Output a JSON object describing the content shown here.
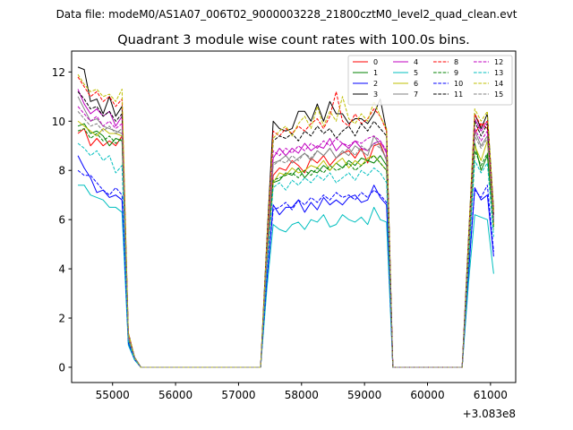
{
  "chart_data": {
    "type": "line",
    "suptitle": "Data file: modeM0/AS1A07_006T02_9000003228_21800cztM0_level2_quad_clean.evt",
    "title": "Quadrant 3 module wise count rates with 100.0s bins.",
    "xlabel": "",
    "ylabel": "",
    "x_offset_label": "+3.083e8",
    "xlim": [
      54350,
      61400
    ],
    "ylim": [
      -0.62,
      12.85
    ],
    "x_ticks": [
      55000,
      56000,
      57000,
      58000,
      59000,
      60000,
      61000
    ],
    "x_tick_labels": [
      "55000",
      "56000",
      "57000",
      "58000",
      "59000",
      "60000",
      "61000"
    ],
    "y_ticks": [
      0,
      2,
      4,
      6,
      8,
      10,
      12
    ],
    "y_tick_labels": [
      "0",
      "2",
      "4",
      "6",
      "8",
      "10",
      "12"
    ],
    "grid": false,
    "legend_position": "top-right",
    "x": [
      54450,
      54550,
      54650,
      54750,
      54850,
      54950,
      55050,
      55150,
      55250,
      55350,
      55450,
      55550,
      55650,
      55750,
      55850,
      55950,
      56050,
      56150,
      56250,
      56350,
      56450,
      56550,
      56650,
      56750,
      56850,
      56950,
      57050,
      57150,
      57250,
      57350,
      57450,
      57550,
      57650,
      57750,
      57850,
      57950,
      58050,
      58150,
      58250,
      58350,
      58450,
      58550,
      58650,
      58750,
      58850,
      58950,
      59050,
      59150,
      59250,
      59350,
      59450,
      59550,
      59650,
      59750,
      59850,
      59950,
      60050,
      60150,
      60250,
      60350,
      60450,
      60550,
      60650,
      60750,
      60850,
      60950,
      61050
    ],
    "series": [
      {
        "name": "0",
        "color": "#ff0000",
        "dash": "solid",
        "values": [
          9.5,
          9.7,
          9.0,
          9.3,
          9.0,
          9.2,
          9.0,
          9.4,
          1.2,
          0.4,
          0,
          0,
          0,
          0,
          0,
          0,
          0,
          0,
          0,
          0,
          0,
          0,
          0,
          0,
          0,
          0,
          0,
          0,
          0,
          0,
          4.5,
          7.8,
          8.1,
          8.0,
          8.4,
          8.2,
          7.9,
          8.5,
          8.3,
          8.6,
          8.2,
          8.5,
          8.7,
          8.8,
          8.5,
          8.9,
          8.3,
          9.0,
          9.1,
          8.4,
          0,
          0,
          0,
          0,
          0,
          0,
          0,
          0,
          0,
          0,
          0,
          0,
          4.5,
          9.5,
          9.9,
          9.7,
          5.8
        ]
      },
      {
        "name": "1",
        "color": "#008000",
        "dash": "solid",
        "values": [
          9.8,
          9.9,
          9.5,
          9.6,
          9.4,
          9.0,
          9.3,
          9.2,
          1.1,
          0.4,
          0,
          0,
          0,
          0,
          0,
          0,
          0,
          0,
          0,
          0,
          0,
          0,
          0,
          0,
          0,
          0,
          0,
          0,
          0,
          0,
          4.4,
          7.5,
          7.6,
          7.9,
          7.8,
          8.1,
          7.7,
          8.0,
          7.9,
          8.2,
          8.0,
          8.3,
          8.1,
          8.4,
          8.2,
          8.5,
          8.4,
          8.3,
          8.6,
          8.2,
          0,
          0,
          0,
          0,
          0,
          0,
          0,
          0,
          0,
          0,
          0,
          0,
          4.2,
          9.1,
          8.0,
          8.6,
          5.9
        ]
      },
      {
        "name": "2",
        "color": "#0000ff",
        "dash": "solid",
        "values": [
          8.6,
          8.1,
          7.7,
          7.1,
          7.2,
          6.9,
          7.0,
          6.8,
          1.0,
          0.3,
          0,
          0,
          0,
          0,
          0,
          0,
          0,
          0,
          0,
          0,
          0,
          0,
          0,
          0,
          0,
          0,
          0,
          0,
          0,
          0,
          3.5,
          6.6,
          6.2,
          6.5,
          6.5,
          6.8,
          6.3,
          6.7,
          6.4,
          6.9,
          6.6,
          6.8,
          6.6,
          6.9,
          7.0,
          6.7,
          6.8,
          7.4,
          6.9,
          6.6,
          0,
          0,
          0,
          0,
          0,
          0,
          0,
          0,
          0,
          0,
          0,
          0,
          3.8,
          7.3,
          6.8,
          7.0,
          4.5
        ]
      },
      {
        "name": "3",
        "color": "#000000",
        "dash": "solid",
        "values": [
          12.2,
          12.1,
          10.8,
          10.9,
          10.3,
          11.0,
          10.2,
          10.6,
          1.4,
          0.4,
          0,
          0,
          0,
          0,
          0,
          0,
          0,
          0,
          0,
          0,
          0,
          0,
          0,
          0,
          0,
          0,
          0,
          0,
          0,
          0,
          5.2,
          10.0,
          9.7,
          9.6,
          9.7,
          10.4,
          10.4,
          10.0,
          10.7,
          10.0,
          10.8,
          10.3,
          10.3,
          9.9,
          10.1,
          10.1,
          9.9,
          10.3,
          10.9,
          9.6,
          0,
          0,
          0,
          0,
          0,
          0,
          0,
          0,
          0,
          0,
          0,
          0,
          5.2,
          10.3,
          9.7,
          10.3,
          6.4
        ]
      },
      {
        "name": "4",
        "color": "#c000c0",
        "dash": "solid",
        "values": [
          11.3,
          10.7,
          10.3,
          10.5,
          10.2,
          10.4,
          9.8,
          10.2,
          1.3,
          0.4,
          0,
          0,
          0,
          0,
          0,
          0,
          0,
          0,
          0,
          0,
          0,
          0,
          0,
          0,
          0,
          0,
          0,
          0,
          0,
          0,
          4.7,
          8.5,
          8.9,
          8.6,
          8.9,
          8.7,
          9.1,
          8.8,
          9.0,
          8.9,
          9.3,
          8.8,
          9.1,
          8.9,
          9.2,
          8.9,
          8.8,
          9.1,
          9.2,
          8.7,
          0,
          0,
          0,
          0,
          0,
          0,
          0,
          0,
          0,
          0,
          0,
          0,
          4.9,
          10.1,
          9.6,
          10.0,
          6.2
        ]
      },
      {
        "name": "5",
        "color": "#00bfbf",
        "dash": "solid",
        "values": [
          7.4,
          7.4,
          7.0,
          6.9,
          6.8,
          6.5,
          6.5,
          6.3,
          0.9,
          0.3,
          0,
          0,
          0,
          0,
          0,
          0,
          0,
          0,
          0,
          0,
          0,
          0,
          0,
          0,
          0,
          0,
          0,
          0,
          0,
          0,
          3.2,
          5.8,
          5.6,
          5.5,
          5.8,
          5.9,
          5.6,
          6.0,
          5.9,
          6.2,
          5.7,
          5.8,
          6.2,
          6.0,
          5.9,
          6.1,
          5.8,
          6.5,
          6.0,
          5.9,
          0,
          0,
          0,
          0,
          0,
          0,
          0,
          0,
          0,
          0,
          0,
          0,
          3.4,
          6.2,
          6.1,
          6.0,
          3.8
        ]
      },
      {
        "name": "6",
        "color": "#bfbf00",
        "dash": "solid",
        "values": [
          10.0,
          9.8,
          9.6,
          9.4,
          9.7,
          9.5,
          9.5,
          9.4,
          1.2,
          0.4,
          0,
          0,
          0,
          0,
          0,
          0,
          0,
          0,
          0,
          0,
          0,
          0,
          0,
          0,
          0,
          0,
          0,
          0,
          0,
          0,
          4.3,
          7.5,
          7.9,
          7.8,
          8.1,
          7.9,
          8.0,
          8.2,
          8.1,
          8.4,
          8.0,
          8.3,
          8.5,
          8.1,
          8.4,
          8.2,
          8.5,
          8.6,
          8.3,
          8.0,
          0,
          0,
          0,
          0,
          0,
          0,
          0,
          0,
          0,
          0,
          0,
          0,
          4.4,
          9.0,
          8.4,
          9.2,
          5.7
        ]
      },
      {
        "name": "7",
        "color": "#808080",
        "dash": "solid",
        "values": [
          11.0,
          10.5,
          10.0,
          10.1,
          9.8,
          9.7,
          9.6,
          9.5,
          1.3,
          0.4,
          0,
          0,
          0,
          0,
          0,
          0,
          0,
          0,
          0,
          0,
          0,
          0,
          0,
          0,
          0,
          0,
          0,
          0,
          0,
          0,
          4.5,
          8.3,
          8.4,
          8.6,
          8.3,
          8.5,
          8.7,
          8.4,
          8.8,
          8.6,
          8.9,
          8.5,
          8.8,
          8.6,
          9.0,
          8.8,
          8.6,
          9.4,
          9.0,
          8.4,
          0,
          0,
          0,
          0,
          0,
          0,
          0,
          0,
          0,
          0,
          0,
          0,
          4.7,
          9.6,
          9.0,
          9.4,
          6.0
        ]
      },
      {
        "name": "8",
        "color": "#ff0000",
        "dash": "dashed",
        "values": [
          11.8,
          11.4,
          11.0,
          11.2,
          10.8,
          11.0,
          10.6,
          10.9,
          1.4,
          0.4,
          0,
          0,
          0,
          0,
          0,
          0,
          0,
          0,
          0,
          0,
          0,
          0,
          0,
          0,
          0,
          0,
          0,
          0,
          0,
          0,
          5.0,
          9.6,
          9.4,
          9.7,
          9.5,
          9.8,
          9.6,
          9.9,
          10.1,
          9.7,
          10.2,
          11.2,
          10.0,
          9.8,
          10.3,
          9.9,
          10.1,
          10.5,
          10.2,
          9.6,
          0,
          0,
          0,
          0,
          0,
          0,
          0,
          0,
          0,
          0,
          0,
          0,
          5.0,
          10.3,
          9.8,
          10.0,
          6.2
        ]
      },
      {
        "name": "9",
        "color": "#008000",
        "dash": "dashed",
        "values": [
          9.6,
          9.7,
          9.3,
          9.5,
          9.2,
          9.4,
          9.1,
          9.3,
          1.2,
          0.4,
          0,
          0,
          0,
          0,
          0,
          0,
          0,
          0,
          0,
          0,
          0,
          0,
          0,
          0,
          0,
          0,
          0,
          0,
          0,
          0,
          4.3,
          7.6,
          7.7,
          7.8,
          7.9,
          7.7,
          8.0,
          7.8,
          8.1,
          7.9,
          8.2,
          8.0,
          8.1,
          8.3,
          8.0,
          8.2,
          8.4,
          8.6,
          8.3,
          8.0,
          0,
          0,
          0,
          0,
          0,
          0,
          0,
          0,
          0,
          0,
          0,
          0,
          4.3,
          8.8,
          8.2,
          8.7,
          5.6
        ]
      },
      {
        "name": "10",
        "color": "#0000ff",
        "dash": "dashed",
        "values": [
          8.0,
          7.8,
          7.8,
          7.5,
          7.2,
          7.0,
          7.3,
          7.0,
          1.0,
          0.3,
          0,
          0,
          0,
          0,
          0,
          0,
          0,
          0,
          0,
          0,
          0,
          0,
          0,
          0,
          0,
          0,
          0,
          0,
          0,
          0,
          3.6,
          6.4,
          6.5,
          6.7,
          6.4,
          6.8,
          6.6,
          6.9,
          6.7,
          7.0,
          6.8,
          7.1,
          6.9,
          7.0,
          6.8,
          7.1,
          6.9,
          7.2,
          7.0,
          6.7,
          0,
          0,
          0,
          0,
          0,
          0,
          0,
          0,
          0,
          0,
          0,
          0,
          3.8,
          7.2,
          6.9,
          7.4,
          4.7
        ]
      },
      {
        "name": "11",
        "color": "#000000",
        "dash": "dashed",
        "values": [
          11.2,
          10.9,
          10.5,
          10.6,
          10.2,
          10.4,
          10.0,
          10.3,
          1.3,
          0.4,
          0,
          0,
          0,
          0,
          0,
          0,
          0,
          0,
          0,
          0,
          0,
          0,
          0,
          0,
          0,
          0,
          0,
          0,
          0,
          0,
          4.9,
          9.2,
          9.4,
          9.3,
          9.5,
          9.2,
          9.6,
          9.4,
          9.8,
          9.5,
          9.7,
          9.3,
          9.6,
          9.8,
          9.4,
          9.9,
          9.6,
          10.0,
          9.7,
          9.4,
          0,
          0,
          0,
          0,
          0,
          0,
          0,
          0,
          0,
          0,
          0,
          0,
          4.9,
          10.0,
          9.4,
          9.9,
          6.1
        ]
      },
      {
        "name": "12",
        "color": "#c000c0",
        "dash": "dashed",
        "values": [
          10.6,
          10.3,
          10.0,
          10.2,
          9.8,
          10.0,
          9.7,
          9.9,
          1.3,
          0.4,
          0,
          0,
          0,
          0,
          0,
          0,
          0,
          0,
          0,
          0,
          0,
          0,
          0,
          0,
          0,
          0,
          0,
          0,
          0,
          0,
          4.6,
          8.8,
          8.6,
          8.9,
          8.7,
          9.0,
          8.8,
          9.1,
          8.9,
          9.2,
          9.0,
          9.3,
          9.1,
          9.0,
          9.2,
          9.1,
          9.3,
          9.4,
          9.2,
          8.8,
          0,
          0,
          0,
          0,
          0,
          0,
          0,
          0,
          0,
          0,
          0,
          0,
          4.7,
          9.7,
          9.2,
          9.6,
          6.0
        ]
      },
      {
        "name": "13",
        "color": "#00bfbf",
        "dash": "dashed",
        "values": [
          9.1,
          8.9,
          8.6,
          8.8,
          8.4,
          8.6,
          7.9,
          8.2,
          1.1,
          0.3,
          0,
          0,
          0,
          0,
          0,
          0,
          0,
          0,
          0,
          0,
          0,
          0,
          0,
          0,
          0,
          0,
          0,
          0,
          0,
          0,
          4.0,
          7.3,
          7.5,
          7.2,
          7.6,
          7.4,
          7.7,
          7.5,
          7.8,
          7.6,
          7.9,
          7.5,
          7.7,
          7.9,
          7.6,
          8.0,
          7.8,
          8.1,
          7.9,
          7.5,
          0,
          0,
          0,
          0,
          0,
          0,
          0,
          0,
          0,
          0,
          0,
          0,
          4.1,
          8.4,
          7.9,
          8.3,
          5.3
        ]
      },
      {
        "name": "14",
        "color": "#bfbf00",
        "dash": "dashed",
        "values": [
          11.9,
          11.5,
          11.2,
          11.3,
          11.0,
          11.1,
          10.8,
          11.3,
          1.4,
          0.4,
          0,
          0,
          0,
          0,
          0,
          0,
          0,
          0,
          0,
          0,
          0,
          0,
          0,
          0,
          0,
          0,
          0,
          0,
          0,
          0,
          5.1,
          9.3,
          9.6,
          9.8,
          9.4,
          9.9,
          10.2,
          9.7,
          10.6,
          9.8,
          10.4,
          10.0,
          11.0,
          10.1,
          9.9,
          10.3,
          10.0,
          10.8,
          10.2,
          9.7,
          0,
          0,
          0,
          0,
          0,
          0,
          0,
          0,
          0,
          0,
          0,
          0,
          5.1,
          10.5,
          10.0,
          10.4,
          6.3
        ]
      },
      {
        "name": "15",
        "color": "#808080",
        "dash": "dashed",
        "values": [
          10.4,
          10.1,
          9.8,
          9.9,
          9.6,
          9.8,
          9.5,
          9.7,
          1.2,
          0.4,
          0,
          0,
          0,
          0,
          0,
          0,
          0,
          0,
          0,
          0,
          0,
          0,
          0,
          0,
          0,
          0,
          0,
          0,
          0,
          0,
          4.5,
          8.2,
          8.4,
          8.3,
          8.6,
          8.4,
          8.7,
          8.5,
          8.8,
          8.6,
          8.9,
          8.5,
          8.7,
          8.9,
          8.6,
          9.0,
          8.8,
          9.1,
          8.9,
          8.5,
          0,
          0,
          0,
          0,
          0,
          0,
          0,
          0,
          0,
          0,
          0,
          0,
          4.6,
          9.4,
          8.9,
          9.3,
          5.9
        ]
      }
    ]
  }
}
